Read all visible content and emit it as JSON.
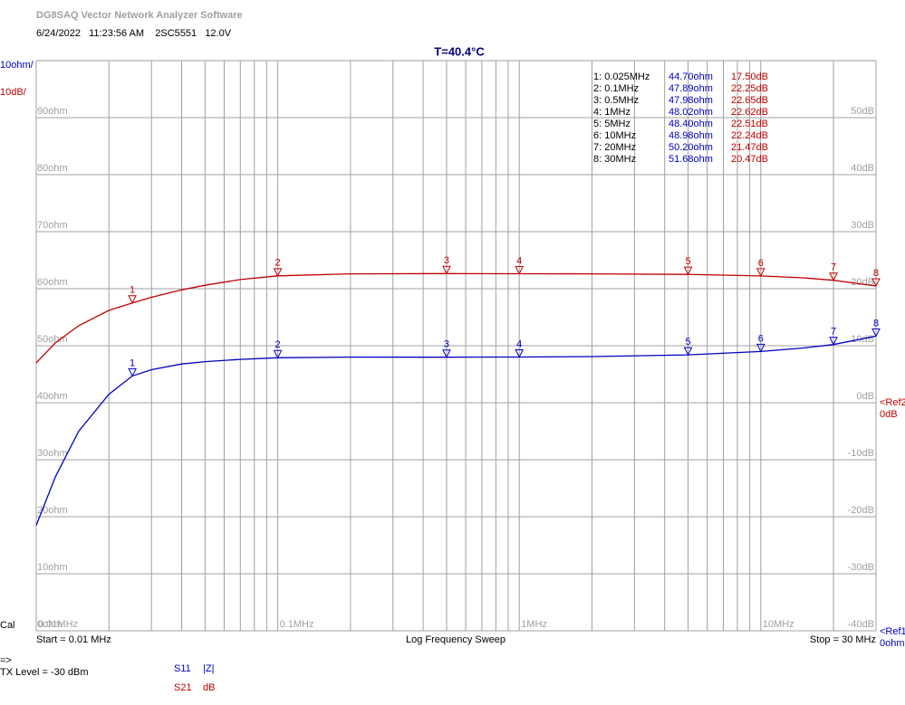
{
  "app_title": "DG8SAQ Vector Network Analyzer Software",
  "info": "6/24/2022   11:23:56 AM    2SC5551   12.0V",
  "chart_data": {
    "type": "line",
    "title": "T=40.4°C",
    "y_scale_label": "10ohm/",
    "y2_scale_label": "10dB/",
    "ref2": "<Ref2",
    "ref2_value": "0dB",
    "ref1": "<Ref1",
    "ref1_value": "0ohm",
    "start": "Start = 0.01 MHz",
    "sweep": "Log Frequency Sweep",
    "stop": "Stop = 30 MHz",
    "log_x": true,
    "grid": true,
    "xlim": [
      0.01,
      30
    ],
    "xticks": [
      {
        "value": 0.01,
        "label": "0.01MHz"
      },
      {
        "value": 0.1,
        "label": "0.1MHz"
      },
      {
        "value": 1,
        "label": "1MHz"
      },
      {
        "value": 10,
        "label": "10MHz"
      }
    ],
    "xminor": [
      0.02,
      0.03,
      0.04,
      0.05,
      0.06,
      0.07,
      0.08,
      0.09,
      0.2,
      0.3,
      0.4,
      0.5,
      0.6,
      0.7,
      0.8,
      0.9,
      2,
      3,
      4,
      5,
      6,
      7,
      8,
      9,
      20,
      30
    ],
    "ylim": [
      0,
      100
    ],
    "yticks": [
      {
        "value": 0,
        "label": "0ohm"
      },
      {
        "value": 10,
        "label": "10ohm"
      },
      {
        "value": 20,
        "label": "20ohm"
      },
      {
        "value": 30,
        "label": "30ohm"
      },
      {
        "value": 40,
        "label": "40ohm"
      },
      {
        "value": 50,
        "label": "50ohm"
      },
      {
        "value": 60,
        "label": "60ohm"
      },
      {
        "value": 70,
        "label": "70ohm"
      },
      {
        "value": 80,
        "label": "80ohm"
      },
      {
        "value": 90,
        "label": "90ohm"
      },
      100
    ],
    "y2lim": [
      -40,
      60
    ],
    "y2ticks": [
      {
        "value": -40,
        "label": "-40dB"
      },
      {
        "value": -30,
        "label": "-30dB"
      },
      {
        "value": -20,
        "label": "-20dB"
      },
      {
        "value": -10,
        "label": "-10dB"
      },
      {
        "value": 0,
        "label": "0dB"
      },
      {
        "value": 10,
        "label": "10dB"
      },
      {
        "value": 20,
        "label": "20dB"
      },
      {
        "value": 30,
        "label": "30dB"
      },
      {
        "value": 40,
        "label": "40dB"
      },
      {
        "value": 50,
        "label": "50dB"
      }
    ],
    "x": [
      0.01,
      0.012,
      0.015,
      0.02,
      0.025,
      0.03,
      0.04,
      0.05,
      0.07,
      0.1,
      0.2,
      0.5,
      1,
      2,
      5,
      10,
      15,
      20,
      30
    ],
    "series": [
      {
        "name": "S11",
        "unit": "|Z|",
        "color": "#0000c0",
        "values": [
          18.5,
          27,
          35,
          41.5,
          44.7,
          45.8,
          46.8,
          47.2,
          47.6,
          47.89,
          48.0,
          47.98,
          48.02,
          48.1,
          48.4,
          48.98,
          49.6,
          50.2,
          51.68
        ]
      },
      {
        "name": "S21",
        "unit": "dB",
        "color": "#c00000",
        "axis": "y2",
        "values": [
          7,
          10.5,
          13.5,
          16.2,
          17.5,
          18.5,
          19.8,
          20.6,
          21.6,
          22.25,
          22.6,
          22.65,
          22.62,
          22.6,
          22.51,
          22.24,
          21.9,
          21.47,
          20.47
        ]
      }
    ],
    "markers": [
      {
        "id": "1",
        "label": "1: 0.025MHz",
        "x": 0.025,
        "s11": 44.7,
        "s11_label": "44.70ohm",
        "s21": 17.5,
        "s21_label": "17.50dB"
      },
      {
        "id": "2",
        "label": "2: 0.1MHz",
        "x": 0.1,
        "s11": 47.89,
        "s11_label": "47.89ohm",
        "s21": 22.25,
        "s21_label": "22.25dB"
      },
      {
        "id": "3",
        "label": "3: 0.5MHz",
        "x": 0.5,
        "s11": 47.98,
        "s11_label": "47.98ohm",
        "s21": 22.65,
        "s21_label": "22.65dB"
      },
      {
        "id": "4",
        "label": "4: 1MHz",
        "x": 1,
        "s11": 48.02,
        "s11_label": "48.02ohm",
        "s21": 22.62,
        "s21_label": "22.62dB"
      },
      {
        "id": "5",
        "label": "5: 5MHz",
        "x": 5,
        "s11": 48.4,
        "s11_label": "48.40ohm",
        "s21": 22.51,
        "s21_label": "22.51dB"
      },
      {
        "id": "6",
        "label": "6: 10MHz",
        "x": 10,
        "s11": 48.98,
        "s11_label": "48.98ohm",
        "s21": 22.24,
        "s21_label": "22.24dB"
      },
      {
        "id": "7",
        "label": "7: 20MHz",
        "x": 20,
        "s11": 50.2,
        "s11_label": "50.20ohm",
        "s21": 21.47,
        "s21_label": "21.47dB"
      },
      {
        "id": "8",
        "label": "8: 30MHz",
        "x": 30,
        "s11": 51.68,
        "s11_label": "51.68ohm",
        "s21": 20.47,
        "s21_label": "20.47dB"
      }
    ]
  },
  "cal": "Cal",
  "arrow": "=>",
  "tx_level": "TX Level = -30 dBm"
}
